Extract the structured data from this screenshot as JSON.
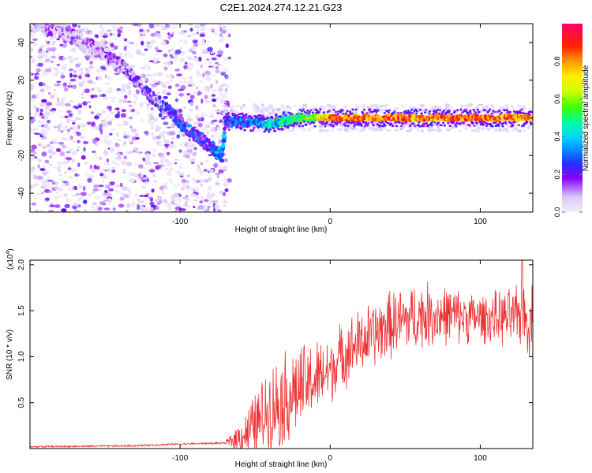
{
  "figure_title": "C2E1.2024.274.12.21.G23",
  "chart_data": [
    {
      "type": "heatmap",
      "xlabel": "Height of straight line (km)",
      "ylabel": "Frequency (Hz)",
      "xlim": [
        -200,
        135
      ],
      "ylim": [
        -50,
        50
      ],
      "x_ticks": [
        -100,
        0,
        100
      ],
      "y_ticks": [
        -40,
        -20,
        0,
        20,
        40
      ],
      "colorbar": {
        "label": "Normalized spectral amplitude",
        "range": [
          0.0,
          1.0
        ],
        "ticks": [
          0.0,
          0.2,
          0.4,
          0.6,
          0.8
        ],
        "colors": [
          "#f2eef8",
          "#8800ff",
          "#2233ff",
          "#00d0ff",
          "#00ff66",
          "#aaff00",
          "#ffee00",
          "#ff7700",
          "#ff1111",
          "#ff0066"
        ]
      },
      "ridge": [
        {
          "x": -200,
          "y": 50
        },
        {
          "x": -180,
          "y": 47
        },
        {
          "x": -165,
          "y": 40
        },
        {
          "x": -150,
          "y": 34
        },
        {
          "x": -135,
          "y": 25
        },
        {
          "x": -120,
          "y": 12
        },
        {
          "x": -105,
          "y": 2
        },
        {
          "x": -95,
          "y": -6
        },
        {
          "x": -85,
          "y": -12
        },
        {
          "x": -72,
          "y": -20
        },
        {
          "x": -70,
          "y": -2
        },
        {
          "x": -60,
          "y": -2
        },
        {
          "x": -40,
          "y": -3
        },
        {
          "x": -20,
          "y": 0
        },
        {
          "x": 0,
          "y": 0
        },
        {
          "x": 50,
          "y": 0
        },
        {
          "x": 100,
          "y": 0
        },
        {
          "x": 135,
          "y": 0
        }
      ],
      "noise_region": {
        "x_end": -70,
        "density": "scattered"
      },
      "steady_amplitude": 0.95
    },
    {
      "type": "line",
      "xlabel": "Height of straight line (km)",
      "ylabel": "SNR (10 * v/v)",
      "y_multiplier_label": "(x10",
      "y_multiplier_exp": "4",
      "xlim": [
        -200,
        135
      ],
      "ylim": [
        0,
        2.05
      ],
      "x_ticks": [
        -100,
        0,
        100
      ],
      "y_ticks": [
        0.5,
        1.0,
        1.5,
        2.0
      ],
      "y_tick_labels": [
        "0.5",
        "1.0",
        "1.5",
        "2.0"
      ],
      "color": "#ee3333",
      "envelope": [
        {
          "x": -200,
          "mean": 0.02,
          "spread": 0.01
        },
        {
          "x": -130,
          "mean": 0.03,
          "spread": 0.01
        },
        {
          "x": -100,
          "mean": 0.05,
          "spread": 0.01
        },
        {
          "x": -70,
          "mean": 0.06,
          "spread": 0.01
        },
        {
          "x": -60,
          "mean": 0.12,
          "spread": 0.2
        },
        {
          "x": -50,
          "mean": 0.25,
          "spread": 0.35
        },
        {
          "x": -40,
          "mean": 0.45,
          "spread": 0.45
        },
        {
          "x": -30,
          "mean": 0.55,
          "spread": 0.5
        },
        {
          "x": -20,
          "mean": 0.65,
          "spread": 0.45
        },
        {
          "x": -10,
          "mean": 0.75,
          "spread": 0.4
        },
        {
          "x": 0,
          "mean": 0.85,
          "spread": 0.35
        },
        {
          "x": 10,
          "mean": 1.05,
          "spread": 0.35
        },
        {
          "x": 25,
          "mean": 1.2,
          "spread": 0.35
        },
        {
          "x": 40,
          "mean": 1.35,
          "spread": 0.35
        },
        {
          "x": 60,
          "mean": 1.45,
          "spread": 0.35
        },
        {
          "x": 80,
          "mean": 1.45,
          "spread": 0.3
        },
        {
          "x": 100,
          "mean": 1.42,
          "spread": 0.25
        },
        {
          "x": 120,
          "mean": 1.42,
          "spread": 0.3
        },
        {
          "x": 135,
          "mean": 1.4,
          "spread": 0.4
        }
      ],
      "peak": {
        "x": 128,
        "y": 2.05
      }
    }
  ]
}
